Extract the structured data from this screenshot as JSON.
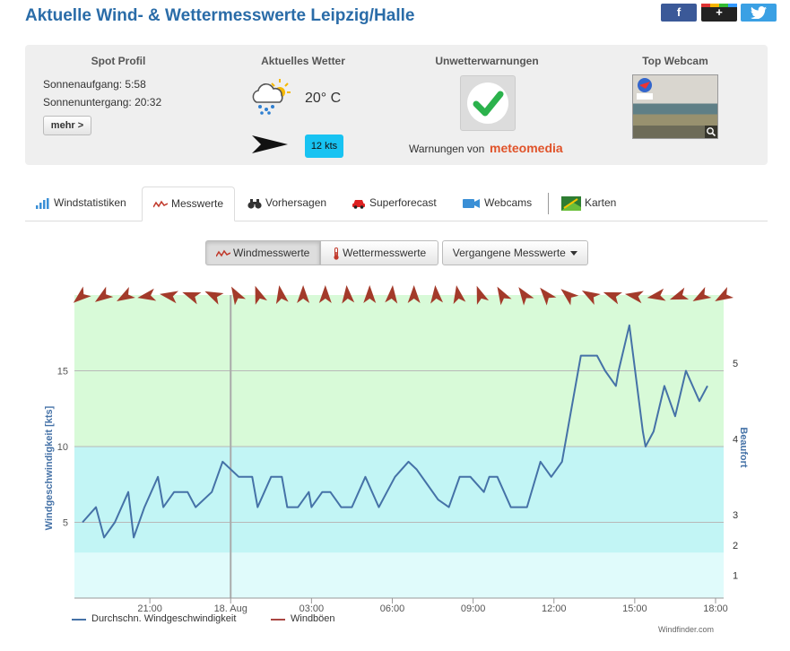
{
  "page": {
    "title": "Aktuelle Wind- & Wettermesswerte Leipzig/Halle",
    "social": {
      "facebook": "f",
      "googleplus": "+",
      "twitter": "t"
    }
  },
  "spot": {
    "title": "Spot Profil",
    "sunrise": "Sonnenaufgang: 5:58",
    "sunset": "Sonnenuntergang: 20:32",
    "more_label": "mehr >"
  },
  "weather": {
    "title": "Aktuelles Wetter",
    "temperature": "20° C",
    "wind_badge": "12 kts",
    "icon": "cloud-rain-sun-icon"
  },
  "warnings": {
    "title": "Unwetterwarnungen",
    "provider_text": "Warnungen von",
    "provider_brand_a": "meteo",
    "provider_brand_b": "media"
  },
  "webcam": {
    "title": "Top Webcam"
  },
  "tabs": [
    {
      "label": "Windstatistiken",
      "icon": "bar-chart-icon"
    },
    {
      "label": "Messwerte",
      "icon": "line-chart-icon",
      "active": true
    },
    {
      "label": "Vorhersagen",
      "icon": "binoculars-icon"
    },
    {
      "label": "Superforecast",
      "icon": "car-icon"
    },
    {
      "label": "Webcams",
      "icon": "video-camera-icon"
    },
    {
      "label": "Karten",
      "icon": "map-icon"
    }
  ],
  "chart_buttons": {
    "wind": "Windmesswerte",
    "weather": "Wettermesswerte",
    "past": "Vergangene Messwerte"
  },
  "chart_data": {
    "type": "line",
    "ylabel": "Windgeschwindigkeit [kts]",
    "y2label": "Beaufort",
    "ylim": [
      0,
      20
    ],
    "yticks": [
      5,
      10,
      15
    ],
    "beaufort_ticks": [
      {
        "label": "1",
        "kts": 1.5
      },
      {
        "label": "2",
        "kts": 3.5
      },
      {
        "label": "3",
        "kts": 5.5
      },
      {
        "label": "4",
        "kts": 10.5
      },
      {
        "label": "5",
        "kts": 15.5
      }
    ],
    "x_tick_labels": [
      "21:00",
      "18. Aug",
      "03:00",
      "06:00",
      "09:00",
      "12:00",
      "15:00",
      "18:00"
    ],
    "x_tick_hours": [
      3,
      6,
      9,
      12,
      15,
      18,
      21,
      24
    ],
    "x_range_hours": [
      0.2,
      24.3
    ],
    "day_marker_hour": 6,
    "bands": [
      {
        "from": 0,
        "to": 3,
        "color": "#e0fbfb"
      },
      {
        "from": 3,
        "to": 10,
        "color": "#c2f5f5"
      },
      {
        "from": 10,
        "to": 20,
        "color": "#d8fad8"
      }
    ],
    "series": [
      {
        "name": "Durchschn. Windgeschwindigkeit",
        "color": "#4572a7",
        "x": [
          0.5,
          1.0,
          1.3,
          1.7,
          2.2,
          2.4,
          2.8,
          3.3,
          3.5,
          3.9,
          4.4,
          4.7,
          5.3,
          5.7,
          6.0,
          6.3,
          6.8,
          7.0,
          7.5,
          7.9,
          8.1,
          8.5,
          8.9,
          9.0,
          9.4,
          9.7,
          10.1,
          10.5,
          11.0,
          11.5,
          11.8,
          12.1,
          12.6,
          12.9,
          13.3,
          13.7,
          14.1,
          14.5,
          14.9,
          15.4,
          15.6,
          15.9,
          16.4,
          17.0,
          17.5,
          17.9,
          18.3,
          18.6,
          19.0,
          19.3,
          19.6,
          19.9,
          20.3,
          20.4,
          20.8,
          21.3,
          21.4,
          21.7,
          22.1,
          22.5,
          22.9,
          23.4,
          23.7
        ],
        "values": [
          5,
          6,
          4,
          5,
          7,
          4,
          6,
          8,
          6,
          7,
          7,
          6,
          7,
          9,
          8.5,
          8,
          8,
          6,
          8,
          8,
          6,
          6,
          7,
          6,
          7,
          7,
          6,
          6,
          8,
          6,
          7,
          8,
          9,
          8.5,
          7.5,
          6.5,
          6,
          8,
          8,
          7,
          8,
          8,
          6,
          6,
          9,
          8,
          9,
          12,
          16,
          16,
          16,
          15,
          14,
          15,
          18,
          11,
          10,
          11,
          14,
          12,
          15,
          13,
          14
        ]
      },
      {
        "name": "Windböen",
        "color": "#aa4643",
        "x": [],
        "values": []
      }
    ],
    "direction_arrows_deg": [
      50,
      55,
      60,
      80,
      100,
      110,
      115,
      150,
      160,
      170,
      180,
      180,
      175,
      180,
      185,
      180,
      175,
      170,
      160,
      150,
      145,
      140,
      130,
      120,
      110,
      100,
      80,
      70,
      60,
      60
    ]
  },
  "credit": "Windfinder.com"
}
